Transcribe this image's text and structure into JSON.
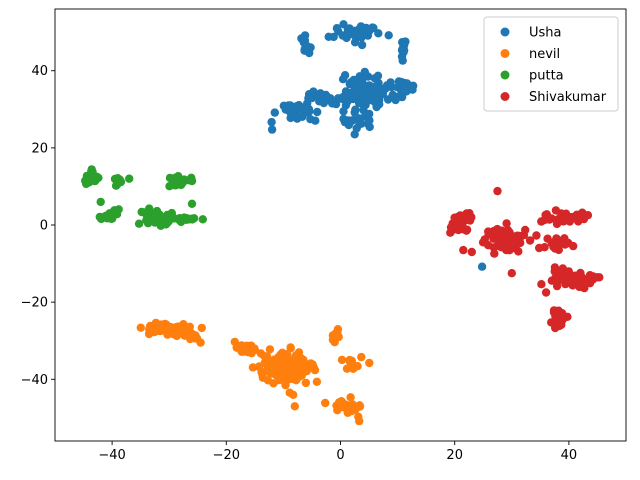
{
  "chart_data": {
    "type": "scatter",
    "title": "",
    "xlabel": "",
    "ylabel": "",
    "xlim": [
      -50,
      50
    ],
    "ylim": [
      -56,
      56
    ],
    "xticks": [
      -40,
      -20,
      0,
      20,
      40
    ],
    "yticks": [
      -40,
      -20,
      0,
      20,
      40
    ],
    "grid": false,
    "legend_position": "top-right",
    "series": [
      {
        "name": "Usha",
        "color": "#1f77b4",
        "clusters": [
          {
            "center": [
              3,
              50
            ],
            "spread": [
              3.2,
              2.2
            ],
            "count": 35
          },
          {
            "center": [
              -6,
              46
            ],
            "spread": [
              1.5,
              2.5
            ],
            "count": 10
          },
          {
            "center": [
              11,
              46
            ],
            "spread": [
              1.2,
              3
            ],
            "count": 10
          },
          {
            "center": [
              5,
              35
            ],
            "spread": [
              3.5,
              3.5
            ],
            "count": 90
          },
          {
            "center": [
              -3,
              33
            ],
            "spread": [
              3,
              2
            ],
            "count": 20
          },
          {
            "center": [
              -8,
              29
            ],
            "spread": [
              3.5,
              2.5
            ],
            "count": 30
          },
          {
            "center": [
              11,
              36
            ],
            "spread": [
              2,
              1.5
            ],
            "count": 15
          },
          {
            "center": [
              3,
              27
            ],
            "spread": [
              2.5,
              2.5
            ],
            "count": 20
          }
        ],
        "outliers": [
          [
            24.8,
            -10.8
          ]
        ]
      },
      {
        "name": "nevil",
        "color": "#ff7f0e",
        "clusters": [
          {
            "center": [
              -30,
              -27
            ],
            "spread": [
              3.5,
              1.3
            ],
            "count": 50
          },
          {
            "center": [
              -27,
              -29
            ],
            "spread": [
              2,
              1
            ],
            "count": 10
          },
          {
            "center": [
              -17,
              -32
            ],
            "spread": [
              2.2,
              1.2
            ],
            "count": 20
          },
          {
            "center": [
              -10,
              -37
            ],
            "spread": [
              4,
              3.5
            ],
            "count": 120
          },
          {
            "center": [
              -1,
              -29
            ],
            "spread": [
              1,
              1.5
            ],
            "count": 12
          },
          {
            "center": [
              1.5,
              -47
            ],
            "spread": [
              2,
              2
            ],
            "count": 25
          },
          {
            "center": [
              2,
              -36
            ],
            "spread": [
              2,
              2
            ],
            "count": 10
          }
        ],
        "outliers": [
          [
            -8,
            -47
          ],
          [
            -24.5,
            -30.5
          ]
        ]
      },
      {
        "name": "putta",
        "color": "#2ca02c",
        "clusters": [
          {
            "center": [
              -43.5,
              12
            ],
            "spread": [
              1.2,
              1.6
            ],
            "count": 25
          },
          {
            "center": [
              -40.5,
              2.5
            ],
            "spread": [
              1.5,
              1
            ],
            "count": 20
          },
          {
            "center": [
              -39,
              11.5
            ],
            "spread": [
              0.6,
              1
            ],
            "count": 10
          },
          {
            "center": [
              -32,
              2
            ],
            "spread": [
              2.2,
              1.8
            ],
            "count": 45
          },
          {
            "center": [
              -28,
              11.5
            ],
            "spread": [
              1.6,
              1.2
            ],
            "count": 25
          },
          {
            "center": [
              -27,
              1.5
            ],
            "spread": [
              1.5,
              1
            ],
            "count": 12
          }
        ],
        "outliers": [
          [
            -37,
            12
          ],
          [
            -42,
            6
          ],
          [
            -26,
            5.5
          ]
        ]
      },
      {
        "name": "Shivakumar",
        "color": "#d62728",
        "clusters": [
          {
            "center": [
              21,
              1
            ],
            "spread": [
              2,
              2.5
            ],
            "count": 30
          },
          {
            "center": [
              29,
              -4
            ],
            "spread": [
              3,
              2.5
            ],
            "count": 80
          },
          {
            "center": [
              39,
              2
            ],
            "spread": [
              3,
              1.5
            ],
            "count": 30
          },
          {
            "center": [
              38,
              -5
            ],
            "spread": [
              2,
              2
            ],
            "count": 20
          },
          {
            "center": [
              40,
              -14
            ],
            "spread": [
              3,
              2
            ],
            "count": 60
          },
          {
            "center": [
              44,
              -14
            ],
            "spread": [
              1,
              1
            ],
            "count": 10
          },
          {
            "center": [
              38,
              -24
            ],
            "spread": [
              1,
              2.5
            ],
            "count": 18
          }
        ],
        "outliers": [
          [
            21.5,
            -6.5
          ],
          [
            23,
            -7
          ],
          [
            27.5,
            8.8
          ],
          [
            30,
            -12.5
          ],
          [
            36,
            -17.5
          ]
        ]
      }
    ]
  }
}
